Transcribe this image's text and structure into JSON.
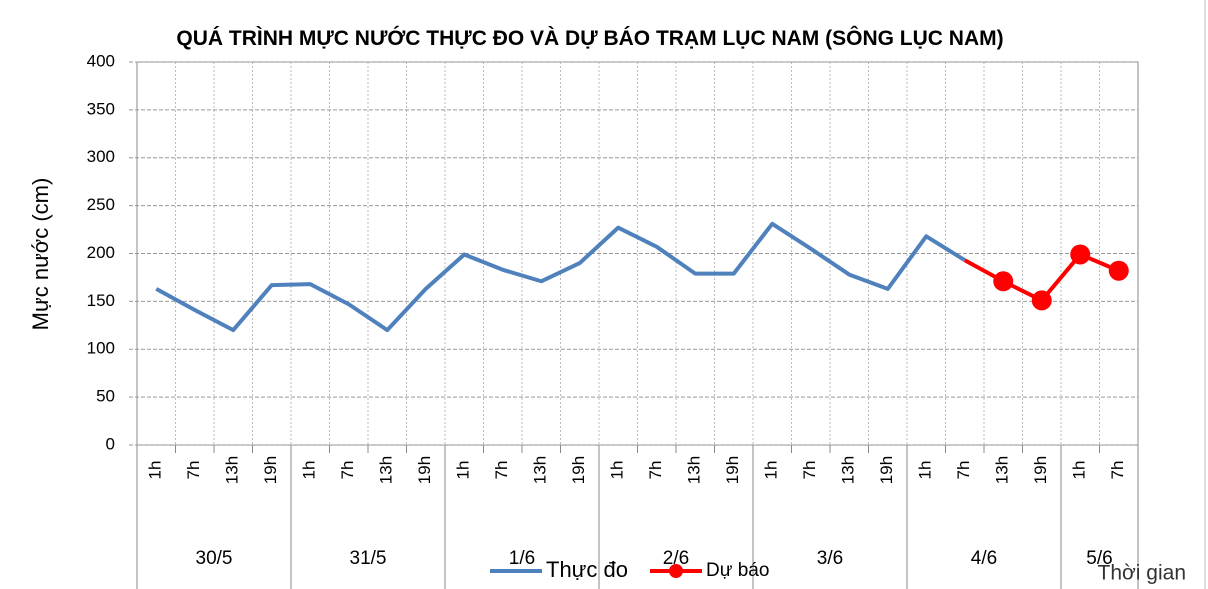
{
  "chart_data": {
    "type": "line",
    "title": "QUÁ TRÌNH MỰC NƯỚC THỰC ĐO VÀ DỰ BÁO TRẠM LỤC NAM (SÔNG LỤC NAM)",
    "y_label": "Mực nước (cm)",
    "x_label": "Thời gian",
    "categories": [
      "1h",
      "7h",
      "13h",
      "19h",
      "1h",
      "7h",
      "13h",
      "19h",
      "1h",
      "7h",
      "13h",
      "19h",
      "1h",
      "7h",
      "13h",
      "19h",
      "1h",
      "7h",
      "13h",
      "19h",
      "1h",
      "7h",
      "13h",
      "19h",
      "1h",
      "7h"
    ],
    "groups": [
      {
        "label": "30/5",
        "size": 4
      },
      {
        "label": "31/5",
        "size": 4
      },
      {
        "label": "1/6",
        "size": 4
      },
      {
        "label": "2/6",
        "size": 4
      },
      {
        "label": "3/6",
        "size": 4
      },
      {
        "label": "4/6",
        "size": 4
      },
      {
        "label": "5/6",
        "size": 2
      }
    ],
    "series": [
      {
        "name": "Thực đo",
        "color": "#4f81bd",
        "marker": false,
        "values": [
          163,
          141,
          120,
          167,
          168,
          147,
          120,
          163,
          199,
          183,
          171,
          190,
          227,
          207,
          179,
          179,
          231,
          205,
          178,
          163,
          218,
          193,
          null,
          null,
          null,
          null
        ]
      },
      {
        "name": "Dự báo",
        "color": "#ff0000",
        "marker": true,
        "values": [
          null,
          null,
          null,
          null,
          null,
          null,
          null,
          null,
          null,
          null,
          null,
          null,
          null,
          null,
          null,
          null,
          null,
          null,
          null,
          null,
          null,
          193,
          171,
          151,
          199,
          182
        ]
      }
    ],
    "ylim": [
      0,
      400
    ],
    "yticks": [
      0,
      50,
      100,
      150,
      200,
      250,
      300,
      350,
      400
    ],
    "grid": true
  }
}
